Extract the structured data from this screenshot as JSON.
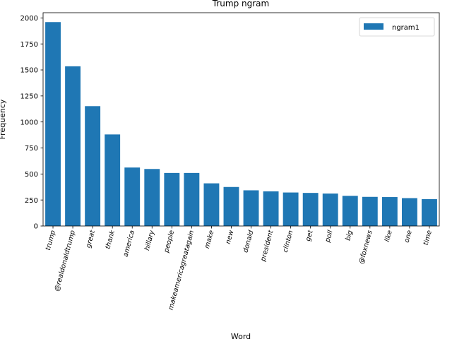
{
  "chart_data": {
    "type": "bar",
    "title": "Trump ngram",
    "xlabel": "Word",
    "ylabel": "Frequency",
    "ylim": [
      0,
      2050
    ],
    "yticks": [
      0,
      250,
      500,
      750,
      1000,
      1250,
      1500,
      1750,
      2000
    ],
    "grid": false,
    "legend_position": "top-right",
    "color": "#1f77b4",
    "categories": [
      "trump",
      "@realdonaldtrump",
      "great",
      "thank",
      "america",
      "hillary",
      "people",
      "makeamericagreatagain",
      "make",
      "new",
      "donald",
      "president",
      "clinton",
      "get",
      "poll",
      "big",
      "@foxnews",
      "like",
      "one",
      "time"
    ],
    "series": [
      {
        "name": "ngram1",
        "values": [
          1960,
          1535,
          1152,
          880,
          562,
          548,
          510,
          510,
          410,
          375,
          343,
          333,
          322,
          318,
          312,
          290,
          280,
          278,
          268,
          258
        ]
      }
    ]
  }
}
